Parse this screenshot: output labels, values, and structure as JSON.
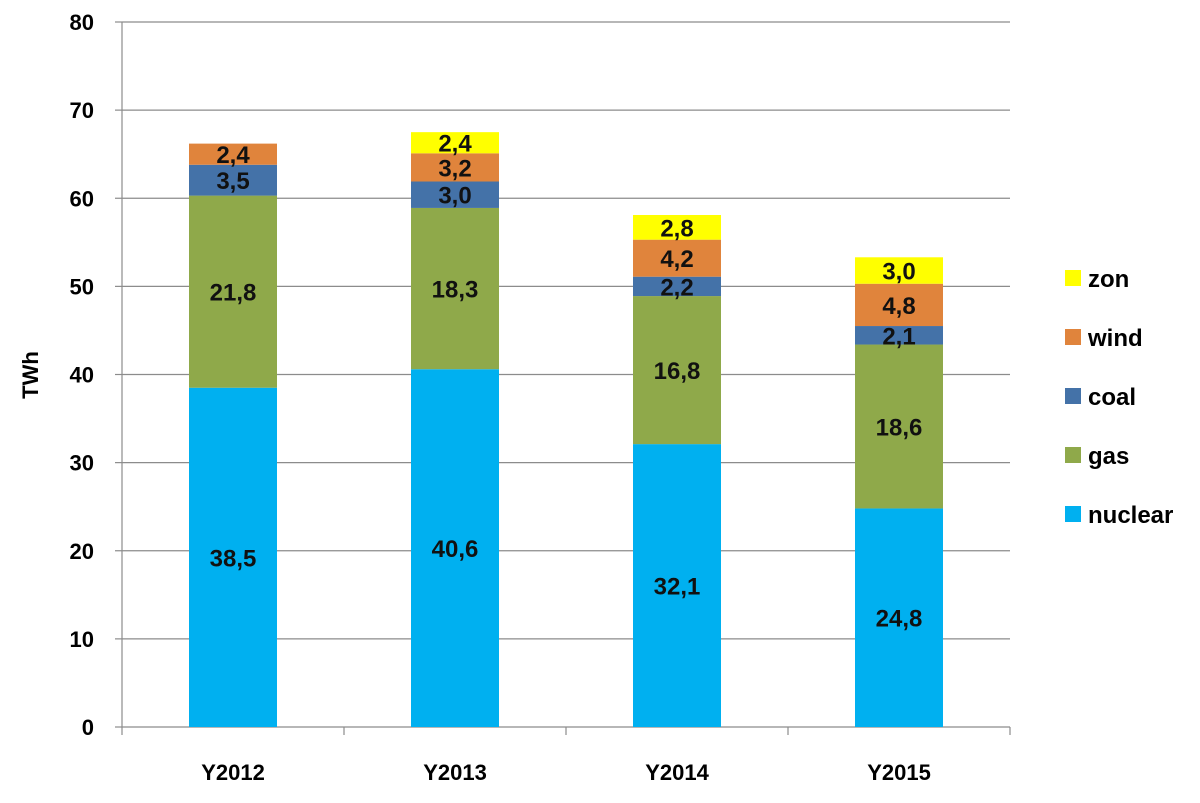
{
  "chart_data": {
    "type": "bar",
    "stacked": true,
    "categories": [
      "Y2012",
      "Y2013",
      "Y2014",
      "Y2015"
    ],
    "series": [
      {
        "name": "nuclear",
        "color": "#00B0F0",
        "values": [
          38.5,
          40.6,
          32.1,
          24.8
        ],
        "labels": [
          "38,5",
          "40,6",
          "32,1",
          "24,8"
        ]
      },
      {
        "name": "gas",
        "color": "#8FA94A",
        "values": [
          21.8,
          18.3,
          16.8,
          18.6
        ],
        "labels": [
          "21,8",
          "18,3",
          "16,8",
          "18,6"
        ]
      },
      {
        "name": "coal",
        "color": "#4472A8",
        "values": [
          3.5,
          3.0,
          2.2,
          2.1
        ],
        "labels": [
          "3,5",
          "3,0",
          "2,2",
          "2,1"
        ]
      },
      {
        "name": "wind",
        "color": "#E0843C",
        "values": [
          2.4,
          3.2,
          4.2,
          4.8
        ],
        "labels": [
          "2,4",
          "3,2",
          "4,2",
          "4,8"
        ]
      },
      {
        "name": "zon",
        "color": "#FFFF00",
        "values": [
          null,
          2.4,
          2.8,
          3.0
        ],
        "labels": [
          "",
          "2,4",
          "2,8",
          "3,0"
        ]
      }
    ],
    "ylabel": "TWh",
    "xlabel": "",
    "title": "",
    "ylim": [
      0,
      80
    ],
    "yticks": [
      0,
      10,
      20,
      30,
      40,
      50,
      60,
      70,
      80
    ],
    "grid": true,
    "legend_position": "right"
  }
}
